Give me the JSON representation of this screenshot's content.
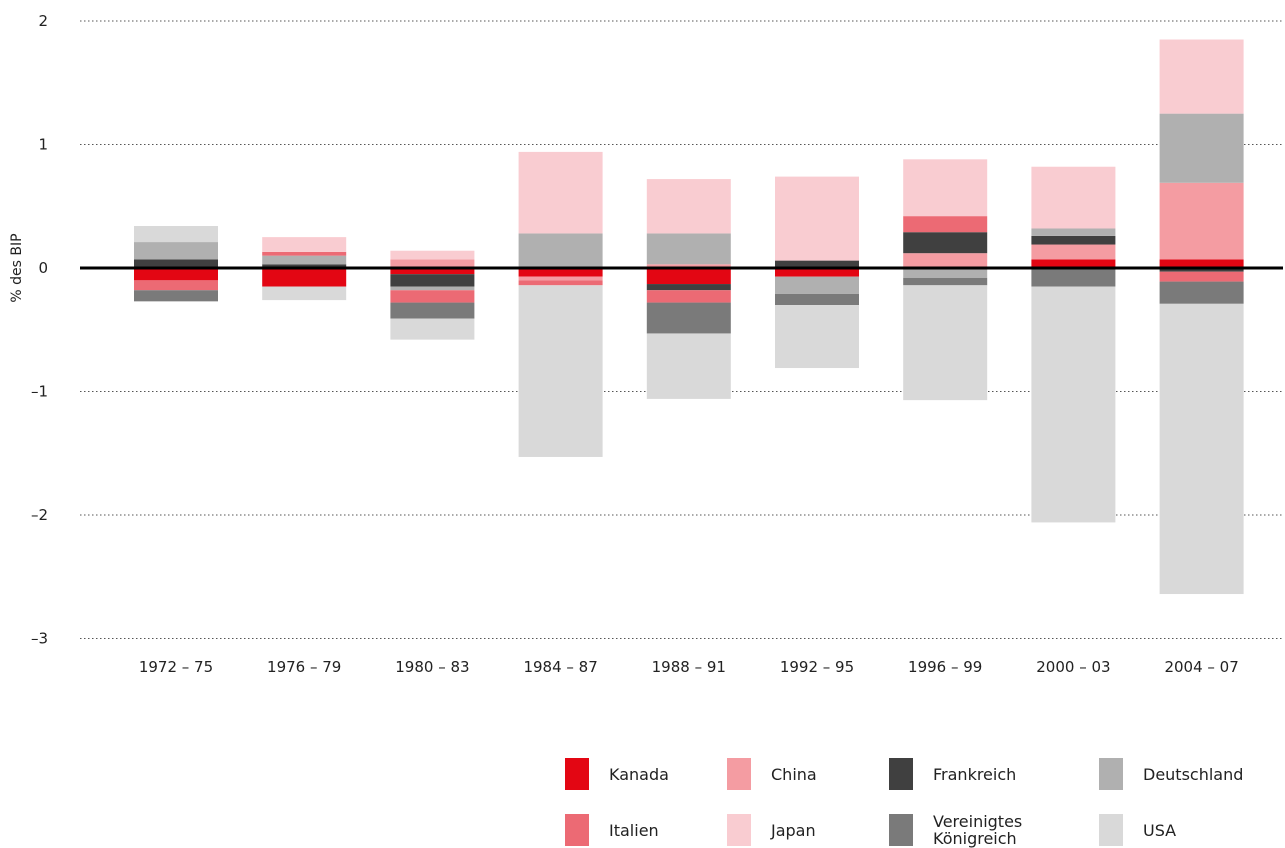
{
  "chart_data": {
    "type": "bar",
    "stacked": true,
    "ylabel": "% des BIP",
    "xlabel": "",
    "title": "",
    "ylim": [
      -3,
      2
    ],
    "yticks": [
      2,
      1,
      0,
      -1,
      -2,
      -3
    ],
    "ytick_labels": [
      "2",
      "1",
      "0",
      "–1",
      "–2",
      "–3"
    ],
    "grid": "horizontal dotted",
    "legend_position": "bottom-right",
    "categories": [
      "1972 – 75",
      "1976 – 79",
      "1980 – 83",
      "1984 – 87",
      "1988 – 91",
      "1992 – 95",
      "1996 – 99",
      "2000 – 03",
      "2004 – 07"
    ],
    "series": [
      {
        "name": "Kanada",
        "color": "#e30613",
        "values": [
          -0.1,
          -0.15,
          -0.05,
          -0.07,
          -0.13,
          -0.07,
          0.0,
          0.07,
          0.07
        ]
      },
      {
        "name": "China",
        "color": "#f49ca2",
        "values": [
          0.0,
          0.0,
          0.07,
          -0.03,
          0.03,
          0.0,
          0.12,
          0.12,
          0.62
        ]
      },
      {
        "name": "Frankreich",
        "color": "#404040",
        "values": [
          0.07,
          0.03,
          -0.1,
          0.0,
          -0.05,
          0.06,
          0.17,
          0.07,
          -0.03
        ]
      },
      {
        "name": "Deutschland",
        "color": "#b0b0b0",
        "values": [
          0.14,
          0.07,
          -0.03,
          0.28,
          0.25,
          -0.14,
          -0.08,
          0.06,
          0.56
        ]
      },
      {
        "name": "Italien",
        "color": "#ec6a74",
        "values": [
          -0.08,
          0.03,
          -0.1,
          -0.04,
          -0.1,
          0.0,
          0.13,
          0.0,
          -0.08
        ]
      },
      {
        "name": "Japan",
        "color": "#f9ccd1",
        "values": [
          0.0,
          0.12,
          0.07,
          0.66,
          0.44,
          0.68,
          0.46,
          0.5,
          0.6
        ]
      },
      {
        "name": "Vereinigtes\nKönigreich",
        "color": "#7a7a7a",
        "values": [
          -0.09,
          0.0,
          -0.13,
          0.0,
          -0.25,
          -0.09,
          -0.06,
          -0.15,
          -0.18
        ]
      },
      {
        "name": "USA",
        "color": "#d9d9d9",
        "values": [
          0.13,
          -0.11,
          -0.17,
          -1.39,
          -0.53,
          -0.51,
          -0.93,
          -1.91,
          -2.35
        ]
      }
    ]
  }
}
